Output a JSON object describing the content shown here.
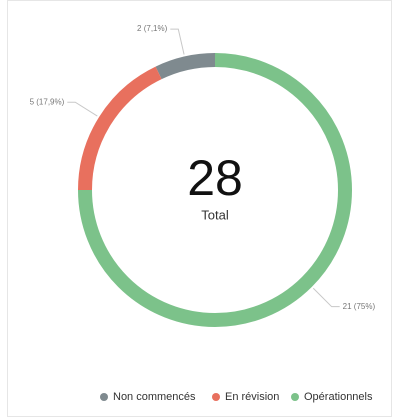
{
  "chart_data": {
    "type": "donut",
    "center_value": 28,
    "center_label": "Total",
    "series": [
      {
        "name": "Non commencés",
        "color": "#7f8a8f",
        "values": [
          2
        ],
        "value_labels": [
          "2 (7,1%)"
        ]
      },
      {
        "name": "En révision",
        "color": "#e8705e",
        "values": [
          5
        ],
        "value_labels": [
          "5 (17,9%)"
        ]
      },
      {
        "name": "Opérationnels",
        "color": "#7cc28a",
        "values": [
          21
        ],
        "value_labels": [
          "21 (75%)"
        ]
      }
    ],
    "legend": "bottom"
  }
}
